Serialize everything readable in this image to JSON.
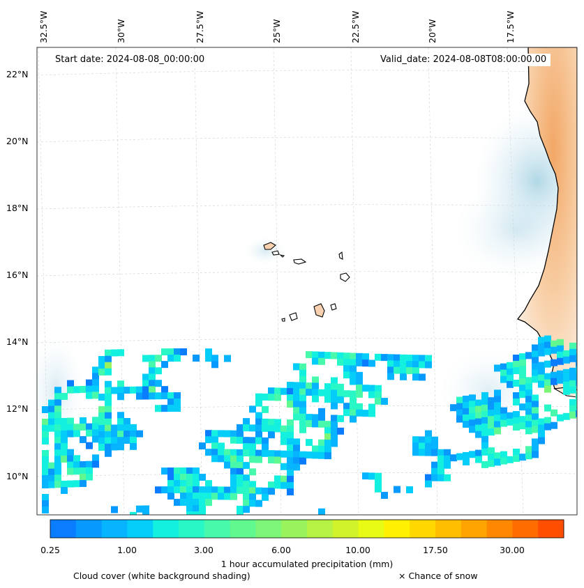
{
  "map": {
    "start_date": "Start date: 2024-08-08_00:00:00",
    "valid_date": "Valid_date: 2024-08-08T08:00:00.00",
    "lon_labels": [
      "32.5°W",
      "30°W",
      "27.5°W",
      "25°W",
      "22.5°W",
      "20°W",
      "17.5°W"
    ],
    "lat_labels": [
      "22°N",
      "20°N",
      "18°N",
      "16°N",
      "14°N",
      "12°N",
      "10°N"
    ]
  },
  "colorbar": {
    "title": "1 hour accumulated precipitation (mm)",
    "tick_labels": [
      "0.25",
      "1.00",
      "3.00",
      "6.00",
      "10.00",
      "17.50",
      "30.00"
    ],
    "colors": [
      "#0a7cff",
      "#0899ff",
      "#06b4ff",
      "#05cdfa",
      "#14f0e0",
      "#2af7c6",
      "#48f9ab",
      "#62f890",
      "#7df677",
      "#99f35c",
      "#b6f243",
      "#d1f32b",
      "#e8fb14",
      "#fff100",
      "#ffd800",
      "#ffbf00",
      "#ffa400",
      "#ff8800",
      "#ff6d00",
      "#ff4e00"
    ]
  },
  "legend": {
    "cloud_label": "Cloud cover (white background shading)",
    "snow_label": "× Chance of snow"
  }
}
